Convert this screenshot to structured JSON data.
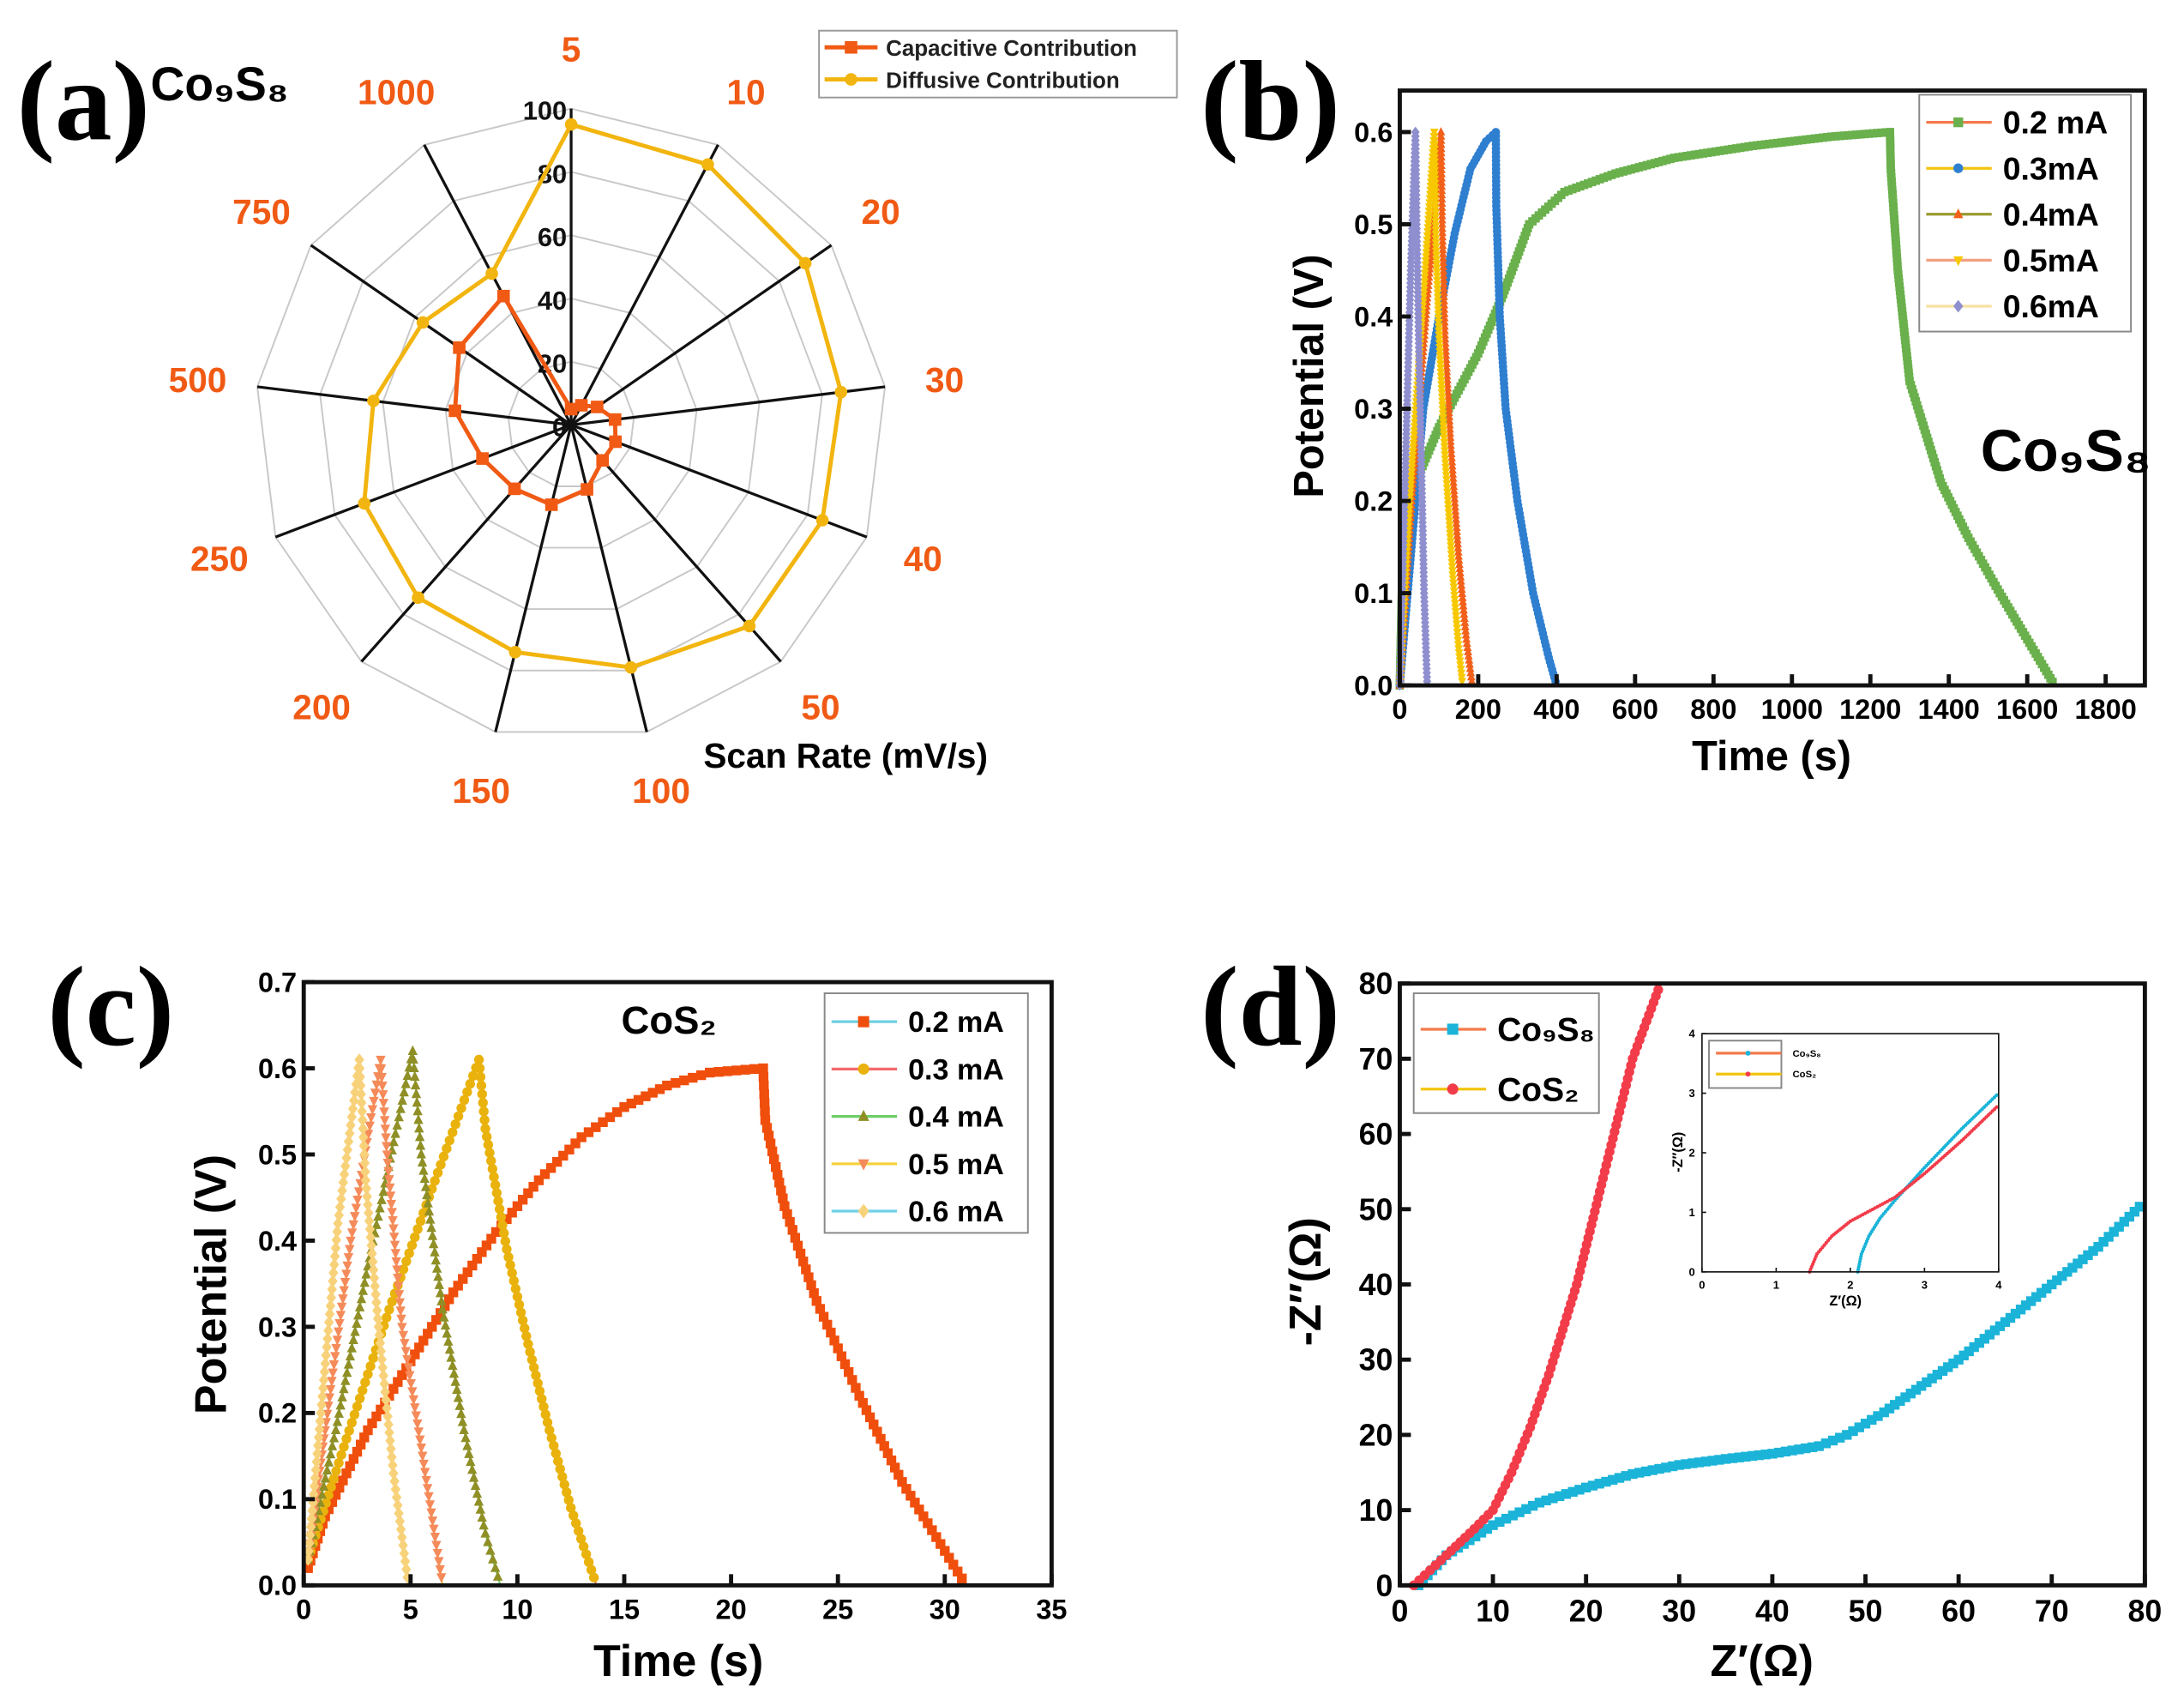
{
  "chart_data": [
    {
      "panel": "(a)",
      "type": "radar",
      "title": "Co₉S₈",
      "axis_label": "Scan Rate (mV/s)",
      "categories": [
        "5",
        "10",
        "20",
        "30",
        "40",
        "50",
        "100",
        "150",
        "200",
        "250",
        "500",
        "750",
        "1000"
      ],
      "radial_ticks": [
        "0",
        "20",
        "40",
        "60",
        "80",
        "100"
      ],
      "rlim": [
        0,
        100
      ],
      "legend_position": "top-right",
      "series": [
        {
          "name": "Capacitive Contribution",
          "color": "#f05a14",
          "marker": "square",
          "values": [
            5,
            7,
            10,
            14,
            15,
            15,
            21,
            26,
            27,
            30,
            37,
            43,
            46
          ]
        },
        {
          "name": "Diffusive Contribution",
          "color": "#f2b50f",
          "marker": "circle",
          "values": [
            95,
            93,
            90,
            86,
            85,
            85,
            79,
            74,
            73,
            70,
            63,
            57,
            54
          ]
        }
      ]
    },
    {
      "panel": "(b)",
      "type": "line",
      "annotation": "Co₉S₈",
      "xlabel": "Time (s)",
      "ylabel": "Potential (V)",
      "xlim": [
        0,
        1900
      ],
      "ylim": [
        0,
        0.645
      ],
      "xticks": [
        "0",
        "200",
        "400",
        "600",
        "800",
        "1000",
        "1200",
        "1400",
        "1600",
        "1800"
      ],
      "yticks": [
        "0.0",
        "0.1",
        "0.2",
        "0.3",
        "0.4",
        "0.5",
        "0.6"
      ],
      "legend_position": "top-right",
      "series": [
        {
          "name": "0.2 mA",
          "color": "#6ab04c",
          "line": "#f47a4a",
          "marker": "square",
          "x": [
            0,
            8,
            20,
            100,
            200,
            260,
            330,
            420,
            550,
            700,
            900,
            1100,
            1250,
            1252,
            1270,
            1300,
            1380,
            1450,
            1530,
            1600,
            1670
          ],
          "y": [
            0,
            0.15,
            0.2,
            0.28,
            0.36,
            0.42,
            0.5,
            0.535,
            0.555,
            0.572,
            0.585,
            0.595,
            0.6,
            0.56,
            0.45,
            0.33,
            0.22,
            0.16,
            0.1,
            0.05,
            0
          ]
        },
        {
          "name": "0.3mA",
          "color": "#2f7fd0",
          "line": "#f2c40f",
          "marker": "circle",
          "x": [
            0,
            20,
            60,
            100,
            140,
            180,
            220,
            245,
            246,
            255,
            270,
            300,
            340,
            380,
            400
          ],
          "y": [
            0,
            0.1,
            0.3,
            0.4,
            0.49,
            0.56,
            0.59,
            0.6,
            0.52,
            0.4,
            0.3,
            0.2,
            0.1,
            0.03,
            0
          ]
        },
        {
          "name": "0.4mA",
          "color": "#f2601a",
          "line": "#9a9a30",
          "marker": "triangle",
          "x": [
            0,
            30,
            70,
            105,
            108,
            115,
            130,
            150,
            170,
            185
          ],
          "y": [
            0,
            0.2,
            0.42,
            0.6,
            0.5,
            0.38,
            0.26,
            0.14,
            0.05,
            0
          ]
        },
        {
          "name": "0.5mA",
          "color": "#f7c800",
          "line": "#f2a080",
          "marker": "triangle-down",
          "x": [
            0,
            25,
            60,
            88,
            92,
            100,
            115,
            135,
            150,
            160
          ],
          "y": [
            0,
            0.2,
            0.42,
            0.6,
            0.48,
            0.38,
            0.25,
            0.12,
            0.04,
            0
          ]
        },
        {
          "name": "0.6mA",
          "color": "#8f8fd0",
          "line": "#f8e0a0",
          "marker": "diamond",
          "x": [
            0,
            12,
            28,
            40,
            43,
            48,
            55,
            62,
            70
          ],
          "y": [
            0,
            0.2,
            0.45,
            0.6,
            0.5,
            0.38,
            0.24,
            0.1,
            0
          ]
        }
      ]
    },
    {
      "panel": "(c)",
      "type": "line",
      "annotation": "CoS₂",
      "xlabel": "Time (s)",
      "ylabel": "Potential (V)",
      "xlim": [
        0,
        35
      ],
      "ylim": [
        0,
        0.7
      ],
      "xticks": [
        "0",
        "5",
        "10",
        "15",
        "20",
        "25",
        "30",
        "35"
      ],
      "yticks": [
        "0.0",
        "0.1",
        "0.2",
        "0.3",
        "0.4",
        "0.5",
        "0.6",
        "0.7"
      ],
      "legend_position": "top-right",
      "series": [
        {
          "name": "0.2 mA",
          "color": "#f04e0c",
          "line": "#6fcfe0",
          "marker": "square",
          "x": [
            0.2,
            1,
            3,
            5,
            7,
            9,
            11,
            13,
            15,
            17,
            19,
            21.5,
            21.6,
            22.5,
            24,
            26,
            28,
            30,
            31
          ],
          "y": [
            0.02,
            0.08,
            0.18,
            0.26,
            0.34,
            0.41,
            0.47,
            0.52,
            0.555,
            0.58,
            0.595,
            0.6,
            0.54,
            0.44,
            0.33,
            0.22,
            0.12,
            0.04,
            0
          ]
        },
        {
          "name": "0.3 mA",
          "color": "#e9b20c",
          "line": "#f26a6a",
          "marker": "circle",
          "x": [
            0.2,
            2,
            4,
            6,
            8.2,
            8.5,
            9.5,
            10.5,
            11.5,
            12.5,
            13.7
          ],
          "y": [
            0.03,
            0.17,
            0.32,
            0.46,
            0.61,
            0.53,
            0.39,
            0.28,
            0.18,
            0.09,
            0
          ]
        },
        {
          "name": "0.4 mA",
          "color": "#8f8f26",
          "line": "#6fcf6a",
          "marker": "triangle",
          "x": [
            0.2,
            1.5,
            3,
            5.1,
            5.5,
            6.5,
            7.5,
            8.5,
            9.2
          ],
          "y": [
            0.03,
            0.18,
            0.37,
            0.62,
            0.5,
            0.32,
            0.18,
            0.06,
            0
          ]
        },
        {
          "name": "0.5 mA",
          "color": "#f58a5a",
          "line": "#f5d040",
          "marker": "triangle-down",
          "x": [
            0.2,
            1,
            2.2,
            3.6,
            3.9,
            4.6,
            5.5,
            6.5
          ],
          "y": [
            0.03,
            0.18,
            0.4,
            0.61,
            0.5,
            0.3,
            0.16,
            0
          ]
        },
        {
          "name": "0.6 mA",
          "color": "#f8d27a",
          "line": "#6fd0e8",
          "marker": "diamond",
          "x": [
            0.2,
            0.8,
            1.6,
            2.6,
            2.9,
            3.5,
            4.2,
            4.9
          ],
          "y": [
            0.03,
            0.2,
            0.42,
            0.61,
            0.47,
            0.3,
            0.13,
            0
          ]
        }
      ]
    },
    {
      "panel": "(d)",
      "type": "scatter",
      "xlabel": "Z′(Ω)",
      "ylabel": "-Z″(Ω)",
      "xlim": [
        0,
        80
      ],
      "ylim": [
        0,
        80
      ],
      "xticks": [
        "0",
        "10",
        "20",
        "30",
        "40",
        "50",
        "60",
        "70",
        "80"
      ],
      "yticks": [
        "0",
        "10",
        "20",
        "30",
        "40",
        "50",
        "60",
        "70",
        "80"
      ],
      "legend_position": "top-left",
      "series": [
        {
          "name": "Co₉S₈",
          "color": "#1bb4d8",
          "line": "#f47a4a",
          "marker": "square",
          "x": [
            2,
            5,
            10,
            15,
            20,
            25,
            30,
            35,
            40,
            45,
            48,
            52,
            56,
            60,
            65,
            70,
            75,
            80
          ],
          "y": [
            0,
            4,
            8,
            11,
            13,
            14.8,
            16,
            16.8,
            17.5,
            18.5,
            20,
            23,
            26.5,
            30,
            35,
            40,
            45,
            51
          ]
        },
        {
          "name": "CoS₂",
          "color": "#f23c4a",
          "line": "#f2c40f",
          "marker": "circle",
          "x": [
            1.5,
            5,
            8,
            10,
            12,
            14,
            16,
            19,
            22,
            25,
            28
          ],
          "y": [
            0,
            4,
            7.5,
            10,
            15,
            21,
            28,
            40,
            55,
            70,
            80
          ]
        }
      ],
      "inset": {
        "xlabel": "Z′(Ω)",
        "ylabel": "-Z″(Ω)",
        "xlim": [
          0,
          4
        ],
        "ylim": [
          0,
          4
        ],
        "xticks": [
          "0",
          "1",
          "2",
          "3",
          "4"
        ],
        "yticks": [
          "0",
          "1",
          "2",
          "3",
          "4"
        ],
        "series": [
          {
            "name": "Co₉S₈",
            "color": "#1bb4d8",
            "line": "#f47a4a",
            "x": [
              2.1,
              2.15,
              2.25,
              2.4,
              2.6,
              3,
              3.5,
              4
            ],
            "y": [
              0,
              0.3,
              0.6,
              0.9,
              1.2,
              1.75,
              2.4,
              3
            ]
          },
          {
            "name": "CoS₂",
            "color": "#f23c4a",
            "line": "#f2c40f",
            "x": [
              1.45,
              1.55,
              1.75,
              2,
              2.3,
              2.6,
              3,
              3.5,
              4
            ],
            "y": [
              0,
              0.3,
              0.6,
              0.85,
              1.05,
              1.25,
              1.65,
              2.2,
              2.8
            ]
          }
        ]
      }
    }
  ]
}
